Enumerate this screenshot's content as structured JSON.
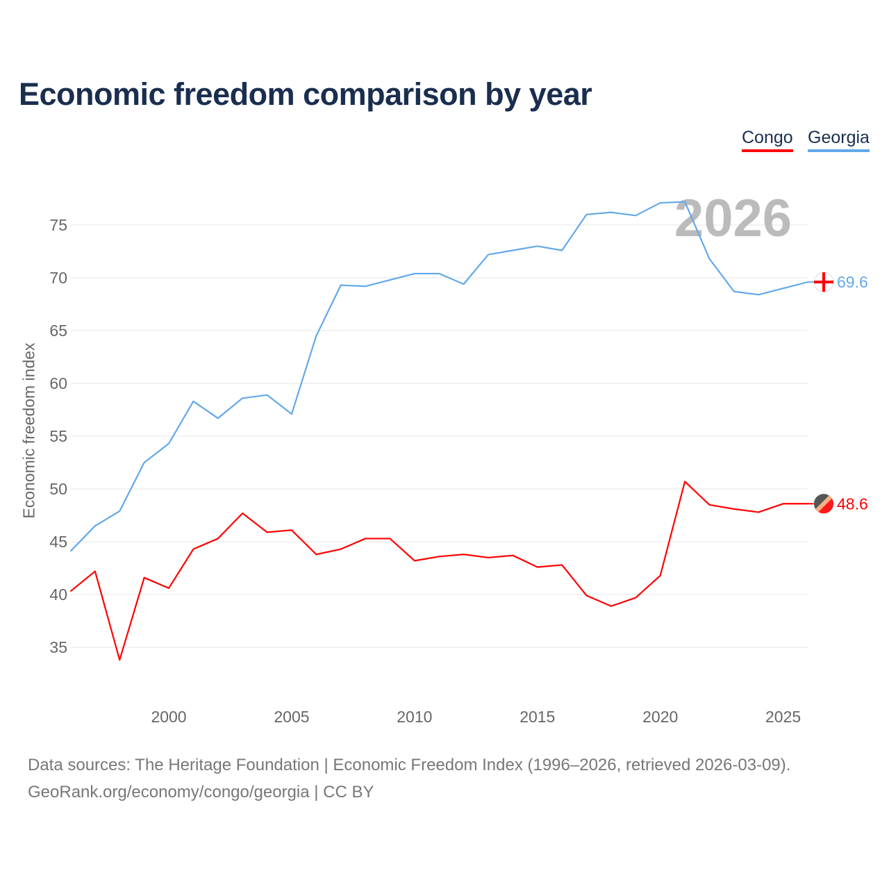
{
  "title": "Economic freedom comparison by year",
  "legend": [
    {
      "label": "Congo",
      "color": "#ff0000"
    },
    {
      "label": "Georgia",
      "color": "#63a8ea"
    }
  ],
  "year_watermark": "2026",
  "sources": {
    "line1": "Data sources: The Heritage Foundation | Economic Freedom Index (1996–2026, retrieved 2026-03-09).",
    "line2": "GeoRank.org/economy/congo/georgia | CC BY"
  },
  "chart_data": {
    "type": "line",
    "title": "Economic freedom comparison by year",
    "xlabel": "",
    "ylabel": "Economic freedom index",
    "xlim": [
      1996,
      2026
    ],
    "ylim": [
      30.5,
      79
    ],
    "xticks": [
      2000,
      2005,
      2010,
      2015,
      2020,
      2025
    ],
    "yticks": [
      35,
      40,
      45,
      50,
      55,
      60,
      65,
      70,
      75
    ],
    "grid": true,
    "legend_position": "top-right",
    "x": [
      1996,
      1997,
      1998,
      1999,
      2000,
      2001,
      2002,
      2003,
      2004,
      2005,
      2006,
      2007,
      2008,
      2009,
      2010,
      2011,
      2012,
      2013,
      2014,
      2015,
      2016,
      2017,
      2018,
      2019,
      2020,
      2021,
      2022,
      2023,
      2024,
      2025,
      2026
    ],
    "series": [
      {
        "name": "Congo",
        "color": "#ff0000",
        "end_label": "48.6",
        "values": [
          40.3,
          42.2,
          33.8,
          41.6,
          40.6,
          44.3,
          45.3,
          47.7,
          45.9,
          46.1,
          43.8,
          44.3,
          45.3,
          45.3,
          43.2,
          43.6,
          43.8,
          43.5,
          43.7,
          42.6,
          42.8,
          39.9,
          38.9,
          39.7,
          41.8,
          50.7,
          48.5,
          48.1,
          47.8,
          48.6,
          48.6
        ]
      },
      {
        "name": "Georgia",
        "color": "#63a8ea",
        "end_label": "69.6",
        "values": [
          44.1,
          46.5,
          47.9,
          52.5,
          54.3,
          58.3,
          56.7,
          58.6,
          58.9,
          57.1,
          64.5,
          69.3,
          69.2,
          69.8,
          70.4,
          70.4,
          69.4,
          72.2,
          72.6,
          73.0,
          72.6,
          76.0,
          76.2,
          75.9,
          77.1,
          77.2,
          71.8,
          68.7,
          68.4,
          69.0,
          69.6
        ]
      }
    ]
  }
}
